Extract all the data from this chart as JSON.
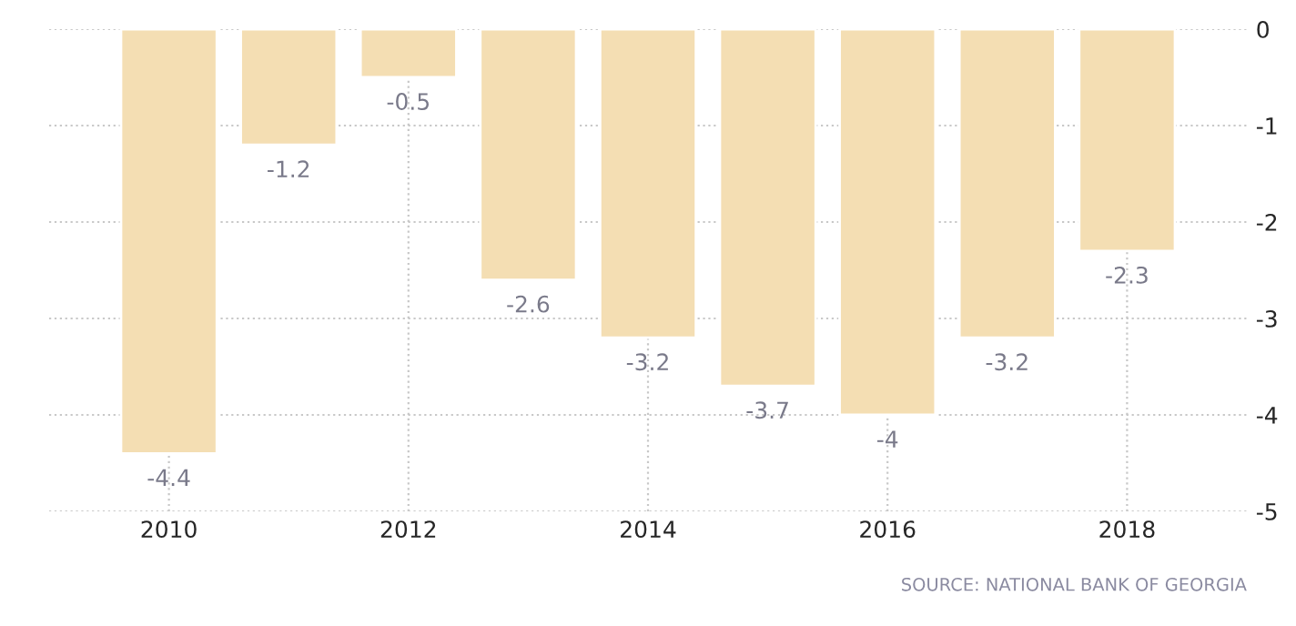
{
  "chart_data": {
    "type": "bar",
    "x": [
      2010,
      2011,
      2012,
      2013,
      2014,
      2015,
      2016,
      2017,
      2018
    ],
    "values": [
      -4.4,
      -1.2,
      -0.5,
      -2.6,
      -3.2,
      -3.7,
      -4,
      -3.2,
      -2.3
    ],
    "color": "#f4deb3",
    "data_labels": true,
    "xlim": [
      2009,
      2019
    ],
    "xticks": [
      2010,
      2012,
      2014,
      2016,
      2018
    ],
    "ylim": [
      -5,
      0
    ],
    "yticks": [
      0,
      -1,
      -2,
      -3,
      -4,
      -5
    ],
    "grid": true,
    "annotations": [
      "SOURCE: NATIONAL BANK OF GEORGIA"
    ]
  }
}
